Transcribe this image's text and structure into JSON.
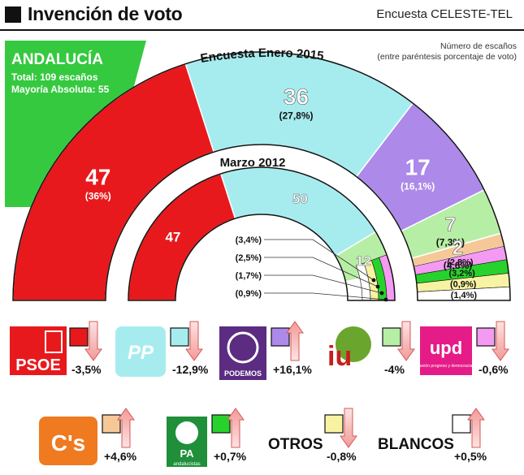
{
  "header": {
    "title": "Invención de voto",
    "source": "Encuesta CELESTE-TEL"
  },
  "region": {
    "name": "ANDALUCÍA",
    "total": "Total: 109 escaños",
    "majority": "Mayoría Absoluta: 55"
  },
  "note": {
    "line1": "Número de escaños",
    "line2": "(entre paréntesis porcentaje de voto)"
  },
  "chart_data": {
    "type": "semicircle",
    "title": "Invención de voto",
    "outer_ring": {
      "label": "Encuesta Enero 2015",
      "parties": [
        {
          "party": "PSOE",
          "seats": 47,
          "pct_label": "(36%)",
          "color": "#e8191c"
        },
        {
          "party": "PP",
          "seats": 36,
          "pct_label": "(27,8%)",
          "color": "#a6ecef"
        },
        {
          "party": "PODEMOS",
          "seats": 17,
          "pct_label": "(16,1%)",
          "color": "#ad89ea"
        },
        {
          "party": "IU",
          "seats": 7,
          "pct_label": "(7,3%)",
          "color": "#b7eea5"
        },
        {
          "party": "UPyD",
          "seats": 2,
          "pct_label": "(4,6%)",
          "color": "#f6c897"
        },
        {
          "party": "C's",
          "seats": 0,
          "pct_label": "(2,8%)",
          "color": "#f59af3"
        },
        {
          "party": "PA",
          "seats": 0,
          "pct_label": "(3,2%)",
          "color": "#27d22c"
        },
        {
          "party": "OTROS",
          "seats": 0,
          "pct_label": "(0,9%)",
          "color": "#f7f3a3"
        },
        {
          "party": "BLANCOS",
          "seats": 0,
          "pct_label": "(1,4%)",
          "color": "#ffffff"
        }
      ]
    },
    "inner_ring": {
      "label": "Marzo 2012",
      "parties": [
        {
          "party": "PSOE",
          "seats": 47,
          "color": "#e8191c"
        },
        {
          "party": "PP",
          "seats": 50,
          "color": "#a6ecef"
        },
        {
          "party": "IU",
          "seats": 12,
          "color": "#b7eea5"
        },
        {
          "party": "UPyD",
          "seats": 0,
          "pct_label": "(3,4%)",
          "color": "#f59af3"
        },
        {
          "party": "PA",
          "seats": 0,
          "pct_label": "(2,5%)",
          "color": "#27d22c"
        },
        {
          "party": "OTROS",
          "seats": 0,
          "pct_label": "(1,7%)",
          "color": "#f7f3a3"
        },
        {
          "party": "BLANCOS",
          "seats": 0,
          "pct_label": "(0,9%)",
          "color": "#ffffff"
        }
      ]
    },
    "changes": [
      {
        "party": "PSOE",
        "logo_text": "PSOE",
        "change": "-3,5%",
        "direction": "down",
        "color": "#e8191c"
      },
      {
        "party": "PP",
        "logo_text": "PP",
        "change": "-12,9%",
        "direction": "down",
        "color": "#a6ecef"
      },
      {
        "party": "PODEMOS",
        "logo_text": "PODEMOS",
        "change": "+16,1%",
        "direction": "up",
        "color": "#ad89ea"
      },
      {
        "party": "IU",
        "logo_text": "iu",
        "change": "-4%",
        "direction": "down",
        "color": "#b7eea5"
      },
      {
        "party": "UPyD",
        "logo_text": "upd",
        "logo_subtext": "unión progreso y democracia",
        "change": "-0,6%",
        "direction": "down",
        "color": "#f59af3"
      },
      {
        "party": "C's",
        "logo_text": "C's",
        "change": "+4,6%",
        "direction": "up",
        "color": "#f6c897"
      },
      {
        "party": "PA",
        "logo_text": "PA",
        "logo_subtext": "andalucistas",
        "change": "+0,7%",
        "direction": "up",
        "color": "#27d22c"
      },
      {
        "party": "OTROS",
        "logo_text": "OTROS",
        "change": "-0,8%",
        "direction": "down",
        "color": "#f7f3a3"
      },
      {
        "party": "BLANCOS",
        "logo_text": "BLANCOS",
        "change": "+0,5%",
        "direction": "up",
        "color": "#ffffff"
      }
    ]
  }
}
